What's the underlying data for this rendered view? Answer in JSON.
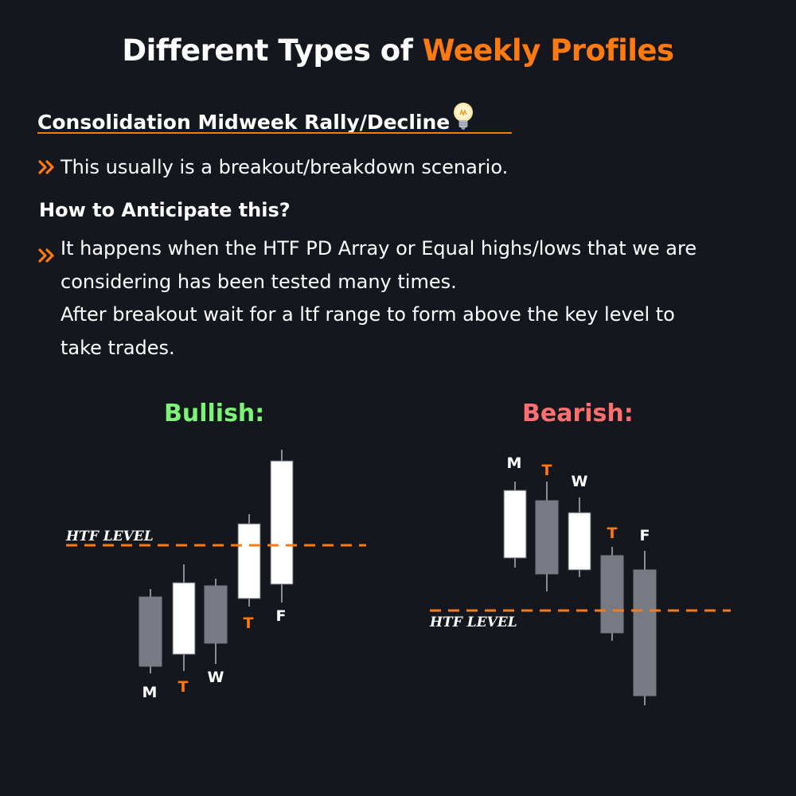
{
  "title": {
    "prefix": "Different Types of ",
    "accent": "Weekly Profiles"
  },
  "subtitle": {
    "text": "Consolidation Midweek Rally/Decline",
    "icon": "lightbulb-icon"
  },
  "bullet1": {
    "icon": "double-chevron-right-icon",
    "text": "This usually is a breakout/breakdown scenario."
  },
  "heading": "How to Anticipate this?",
  "bullet2": {
    "icon": "double-chevron-right-icon",
    "lines": [
      "It happens when the HTF PD Array or Equal highs/lows that we are",
      "considering has been tested many times.",
      "After breakout wait for a ltf range to form above the key level to",
      "take trades."
    ]
  },
  "colors": {
    "background": "#15171f",
    "accent": "#ff7a10",
    "bullish": "#7cf576",
    "bearish": "#ff6f6f",
    "candle_up": "#ffffff",
    "candle_down": "#777a82",
    "wick": "#8a8d94"
  },
  "diagrams": {
    "bullish": {
      "label": "Bullish:",
      "level_label": "HTF LEVEL",
      "candles": [
        {
          "day": "M",
          "direction": "down",
          "highlight": false
        },
        {
          "day": "T",
          "direction": "up",
          "highlight": true
        },
        {
          "day": "W",
          "direction": "down",
          "highlight": false
        },
        {
          "day": "T",
          "direction": "up",
          "highlight": true
        },
        {
          "day": "F",
          "direction": "up",
          "highlight": false
        }
      ]
    },
    "bearish": {
      "label": "Bearish:",
      "level_label": "HTF LEVEL",
      "candles": [
        {
          "day": "M",
          "direction": "up",
          "highlight": false
        },
        {
          "day": "T",
          "direction": "down",
          "highlight": true
        },
        {
          "day": "W",
          "direction": "up",
          "highlight": false
        },
        {
          "day": "T",
          "direction": "down",
          "highlight": true
        },
        {
          "day": "F",
          "direction": "down",
          "highlight": false
        }
      ]
    }
  }
}
